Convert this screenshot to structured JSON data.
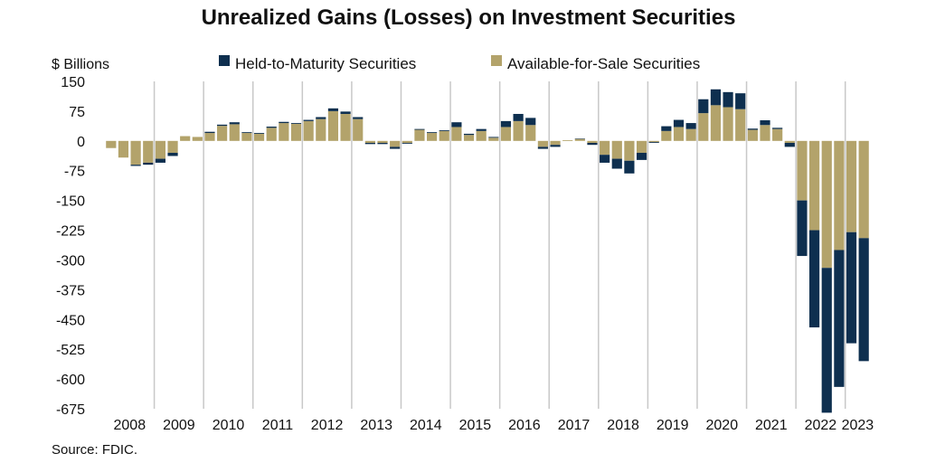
{
  "chart_data": {
    "type": "bar",
    "stacked": true,
    "title": "Unrealized Gains (Losses) on Investment Securities",
    "ylabel": "$ Billions",
    "ylim": [
      -675,
      150
    ],
    "yticks": [
      150,
      75,
      0,
      -75,
      -150,
      -225,
      -300,
      -375,
      -450,
      -525,
      -600,
      -675
    ],
    "ytick_labels": [
      "150",
      "75",
      "0",
      "-75",
      "-150",
      "-225",
      "-300",
      "-375",
      "-450",
      "-525",
      "-600",
      "-675"
    ],
    "x_year_labels": [
      "2008",
      "2009",
      "2010",
      "2011",
      "2012",
      "2013",
      "2014",
      "2015",
      "2016",
      "2017",
      "2018",
      "2019",
      "2020",
      "2021",
      "2022",
      "2023"
    ],
    "grid": "vertical lines at year boundaries",
    "legend_position": "top",
    "source": "Source: FDIC.",
    "categories": [
      "2008Q1",
      "2008Q2",
      "2008Q3",
      "2008Q4",
      "2009Q1",
      "2009Q2",
      "2009Q3",
      "2009Q4",
      "2010Q1",
      "2010Q2",
      "2010Q3",
      "2010Q4",
      "2011Q1",
      "2011Q2",
      "2011Q3",
      "2011Q4",
      "2012Q1",
      "2012Q2",
      "2012Q3",
      "2012Q4",
      "2013Q1",
      "2013Q2",
      "2013Q3",
      "2013Q4",
      "2014Q1",
      "2014Q2",
      "2014Q3",
      "2014Q4",
      "2015Q1",
      "2015Q2",
      "2015Q3",
      "2015Q4",
      "2016Q1",
      "2016Q2",
      "2016Q3",
      "2016Q4",
      "2017Q1",
      "2017Q2",
      "2017Q3",
      "2017Q4",
      "2018Q1",
      "2018Q2",
      "2018Q3",
      "2018Q4",
      "2019Q1",
      "2019Q2",
      "2019Q3",
      "2019Q4",
      "2020Q1",
      "2020Q2",
      "2020Q3",
      "2020Q4",
      "2021Q1",
      "2021Q2",
      "2021Q3",
      "2021Q4",
      "2022Q1",
      "2022Q2",
      "2022Q3",
      "2022Q4",
      "2023Q1",
      "2023Q2"
    ],
    "series": [
      {
        "name": "Available-for-Sale Securities",
        "color": "#b3a36b",
        "values": [
          -18,
          -42,
          -60,
          -55,
          -45,
          -30,
          12,
          10,
          20,
          38,
          42,
          20,
          18,
          33,
          45,
          43,
          50,
          55,
          75,
          68,
          55,
          -5,
          -5,
          -15,
          -5,
          28,
          20,
          25,
          35,
          15,
          25,
          8,
          35,
          50,
          40,
          -15,
          -10,
          2,
          5,
          -5,
          -35,
          -45,
          -50,
          -30,
          -3,
          25,
          35,
          30,
          70,
          90,
          85,
          80,
          28,
          40,
          30,
          -5,
          -150,
          -225,
          -320,
          -275,
          -230,
          -245
        ]
      },
      {
        "name": "Held-to-Maturity Securities",
        "color": "#0e2f4f",
        "values": [
          0,
          0,
          -3,
          -5,
          -10,
          -8,
          0,
          0,
          3,
          3,
          5,
          2,
          2,
          3,
          3,
          2,
          3,
          5,
          7,
          6,
          5,
          -3,
          -3,
          -5,
          -2,
          2,
          2,
          2,
          12,
          3,
          5,
          2,
          15,
          18,
          18,
          -5,
          -5,
          0,
          1,
          -5,
          -20,
          -25,
          -32,
          -18,
          -2,
          12,
          18,
          15,
          35,
          40,
          38,
          40,
          3,
          12,
          3,
          -10,
          -140,
          -245,
          -365,
          -345,
          -280,
          -310
        ]
      }
    ]
  }
}
